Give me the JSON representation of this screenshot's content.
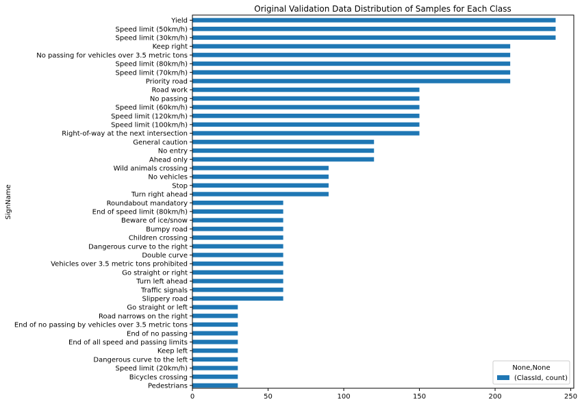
{
  "chart_data": {
    "type": "bar",
    "orientation": "horizontal",
    "title": "Original Validation Data Distribution of Samples for Each Class",
    "ylabel": "SignName",
    "xlabel": "",
    "xlim": [
      0,
      252
    ],
    "xticks": [
      0,
      50,
      100,
      150,
      200,
      250
    ],
    "grid": false,
    "legend_position": "lower-right",
    "legend_title": "None,None",
    "bar_color": "#1f77b4",
    "series": [
      {
        "name": "(ClassId, count)",
        "color": "#1f77b4",
        "categories": [
          "Yield",
          "Speed limit (50km/h)",
          "Speed limit (30km/h)",
          "Keep right",
          "No passing for vehicles over 3.5 metric tons",
          "Speed limit (80km/h)",
          "Speed limit (70km/h)",
          "Priority road",
          "Road work",
          "No passing",
          "Speed limit (60km/h)",
          "Speed limit (120km/h)",
          "Speed limit (100km/h)",
          "Right-of-way at the next intersection",
          "General caution",
          "No entry",
          "Ahead only",
          "Wild animals crossing",
          "No vehicles",
          "Stop",
          "Turn right ahead",
          "Roundabout mandatory",
          "End of speed limit (80km/h)",
          "Beware of ice/snow",
          "Bumpy road",
          "Children crossing",
          "Dangerous curve to the right",
          "Double curve",
          "Vehicles over 3.5 metric tons prohibited",
          "Go straight or right",
          "Turn left ahead",
          "Traffic signals",
          "Slippery road",
          "Go straight or left",
          "Road narrows on the right",
          "End of no passing by vehicles over 3.5 metric tons",
          "End of no passing",
          "End of all speed and passing limits",
          "Keep left",
          "Dangerous curve to the left",
          "Speed limit (20km/h)",
          "Bicycles crossing",
          "Pedestrians"
        ],
        "values": [
          240,
          240,
          240,
          210,
          210,
          210,
          210,
          210,
          150,
          150,
          150,
          150,
          150,
          150,
          120,
          120,
          120,
          90,
          90,
          90,
          90,
          60,
          60,
          60,
          60,
          60,
          60,
          60,
          60,
          60,
          60,
          60,
          60,
          30,
          30,
          30,
          30,
          30,
          30,
          30,
          30,
          30,
          30
        ]
      }
    ]
  }
}
